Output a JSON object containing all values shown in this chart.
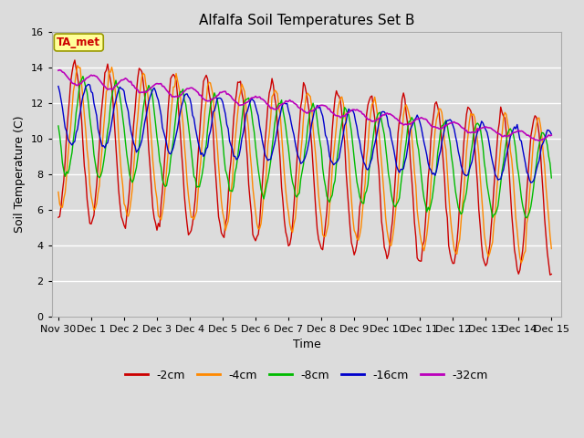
{
  "title": "Alfalfa Soil Temperatures Set B",
  "xlabel": "Time",
  "ylabel": "Soil Temperature (C)",
  "ylim": [
    0,
    16
  ],
  "yticks": [
    0,
    2,
    4,
    6,
    8,
    10,
    12,
    14,
    16
  ],
  "background_color": "#dcdcdc",
  "colors": {
    "-2cm": "#cc0000",
    "-4cm": "#ff8800",
    "-8cm": "#00bb00",
    "-16cm": "#0000cc",
    "-32cm": "#bb00bb"
  },
  "legend_labels": [
    "-2cm",
    "-4cm",
    "-8cm",
    "-16cm",
    "-32cm"
  ],
  "xtick_labels": [
    "Nov 30",
    "Dec 1",
    "Dec 2",
    "Dec 3",
    "Dec 4",
    "Dec 5",
    "Dec 6",
    "Dec 7",
    "Dec 8",
    "Dec 9",
    "Dec 10",
    "Dec 11",
    "Dec 12",
    "Dec 13",
    "Dec 14",
    "Dec 15"
  ],
  "annotation_text": "TA_met",
  "annotation_bg": "#ffff99",
  "annotation_border": "#999900",
  "figsize": [
    6.4,
    4.8
  ],
  "dpi": 100
}
